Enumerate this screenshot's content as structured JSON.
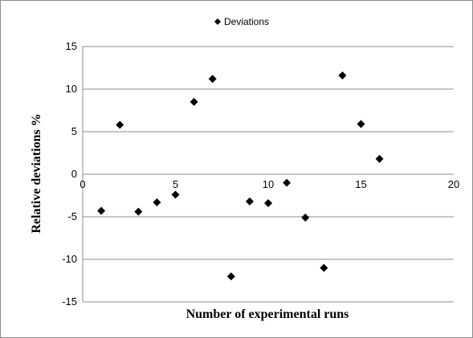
{
  "chart_data": {
    "type": "scatter",
    "title": "",
    "xlabel": "Number of experimental runs",
    "ylabel": "Relative deviations %",
    "xlim": [
      0,
      20
    ],
    "ylim": [
      -15,
      15
    ],
    "x_ticks": [
      0,
      5,
      10,
      15,
      20
    ],
    "y_ticks": [
      -15,
      -10,
      -5,
      0,
      5,
      10,
      15
    ],
    "x_tick_labels": [
      "0",
      "5",
      "10",
      "15",
      "20"
    ],
    "y_tick_labels": [
      "-15",
      "-10",
      "-5",
      "0",
      "5",
      "10",
      "15"
    ],
    "grid": "horizontal",
    "legend_position": "top-center",
    "series": [
      {
        "name": "Deviations",
        "marker": "diamond",
        "color": "#000000",
        "x": [
          1,
          2,
          3,
          4,
          5,
          6,
          7,
          8,
          9,
          10,
          11,
          12,
          13,
          14,
          15,
          16
        ],
        "y": [
          -4.3,
          5.8,
          -4.4,
          -3.3,
          -2.4,
          8.5,
          11.2,
          -12,
          -3.2,
          -3.4,
          -1.0,
          -5.1,
          -11.0,
          11.6,
          5.9,
          1.8
        ]
      }
    ]
  }
}
